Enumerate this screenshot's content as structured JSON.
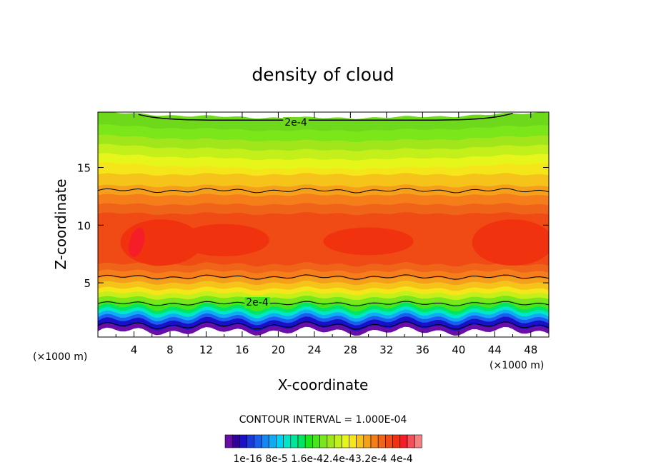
{
  "chart_data": {
    "type": "heatmap",
    "title": "density of cloud",
    "xlabel": "X-coordinate",
    "ylabel": "Z-coordinate",
    "x_unit_left": "(×1000 m)",
    "x_unit_right": "(×1000 m)",
    "xlim": [
      0,
      50
    ],
    "ylim": [
      0.3,
      19.8
    ],
    "x_ticks": [
      4,
      8,
      12,
      16,
      20,
      24,
      28,
      32,
      36,
      40,
      44,
      48
    ],
    "x_tick_labels": [
      "4",
      "8",
      "12",
      "16",
      "20",
      "24",
      "28",
      "32",
      "36",
      "40",
      "44",
      "48"
    ],
    "y_ticks": [
      5,
      10,
      15
    ],
    "y_tick_labels": [
      "5",
      "10",
      "15"
    ],
    "contour_interval_text": "CONTOUR INTERVAL = 1.000E-04",
    "contour_labels": [
      {
        "text": "2e-4",
        "x": 22,
        "z": 19.2
      },
      {
        "text": "2e-4",
        "x": 15.5,
        "z": 3.3
      }
    ],
    "colorbar_colors": [
      "#6a0ea8",
      "#33009c",
      "#1a10c8",
      "#1a3ad9",
      "#1a5ef0",
      "#1586f5",
      "#10aaf5",
      "#00d2f5",
      "#00e6c8",
      "#00e69a",
      "#00e664",
      "#1ae61a",
      "#46e61a",
      "#7be61a",
      "#a0e61a",
      "#c3f01a",
      "#e6f51a",
      "#f5e61a",
      "#f5c31a",
      "#f5a01a",
      "#f57d1a",
      "#f0641a",
      "#f04b14",
      "#f0320f",
      "#f51e28",
      "#f5505a",
      "#f58282"
    ],
    "colorbar_labels": [
      "1e-16",
      "8e-5",
      "1.6e-4",
      "2.4e-4",
      "3.2e-4",
      "4e-4"
    ],
    "colorbar_label_text": "1e-16 8e-5 1.6e-42.4e-43.2e-4 4e-4",
    "bands_z": [
      {
        "z": 19.8,
        "color": "#6ed91a"
      },
      {
        "z": 18.7,
        "color": "#7be61a"
      },
      {
        "z": 17.8,
        "color": "#a0e61a"
      },
      {
        "z": 17.0,
        "color": "#c3f01a"
      },
      {
        "z": 16.2,
        "color": "#e6f51a"
      },
      {
        "z": 15.4,
        "color": "#f5e61a"
      },
      {
        "z": 14.4,
        "color": "#f5c31a"
      },
      {
        "z": 13.4,
        "color": "#f5a01a"
      },
      {
        "z": 12.6,
        "color": "#f57d1a"
      },
      {
        "z": 11.8,
        "color": "#f0641a"
      },
      {
        "z": 11.0,
        "color": "#f04b14"
      },
      {
        "z": 6.6,
        "color": "#f0641a"
      },
      {
        "z": 6.0,
        "color": "#f57d1a"
      },
      {
        "z": 5.4,
        "color": "#f5a01a"
      },
      {
        "z": 5.0,
        "color": "#f5c31a"
      },
      {
        "z": 4.5,
        "color": "#f5e61a"
      },
      {
        "z": 4.1,
        "color": "#c3f01a"
      },
      {
        "z": 3.7,
        "color": "#7be61a"
      },
      {
        "z": 3.3,
        "color": "#46e61a"
      },
      {
        "z": 2.9,
        "color": "#00e664"
      },
      {
        "z": 2.6,
        "color": "#00e6c8"
      },
      {
        "z": 2.3,
        "color": "#10aaf5"
      },
      {
        "z": 2.0,
        "color": "#1a5ef0"
      },
      {
        "z": 1.7,
        "color": "#1a10c8"
      },
      {
        "z": 1.2,
        "color": "#6a0ea8"
      },
      {
        "z": 0.8,
        "color": "#ffffff"
      }
    ],
    "red_core_regions": [
      {
        "x": 7,
        "z": 8.5,
        "rx": 4.5,
        "rz": 2.0
      },
      {
        "x": 14,
        "z": 8.7,
        "rx": 5,
        "rz": 1.4
      },
      {
        "x": 30,
        "z": 8.6,
        "rx": 5,
        "rz": 1.2
      },
      {
        "x": 46,
        "z": 8.5,
        "rx": 4.5,
        "rz": 2.0
      }
    ],
    "max_region": {
      "x": 4.3,
      "z": 8.5,
      "rx": 0.8,
      "rz": 1.3,
      "color": "#f51e28"
    },
    "contour_lines_z": [
      13.0,
      5.5,
      3.2,
      1.3
    ],
    "top_contour": {
      "x_start": 4.5,
      "x_end": 46,
      "z": 19.1
    }
  }
}
